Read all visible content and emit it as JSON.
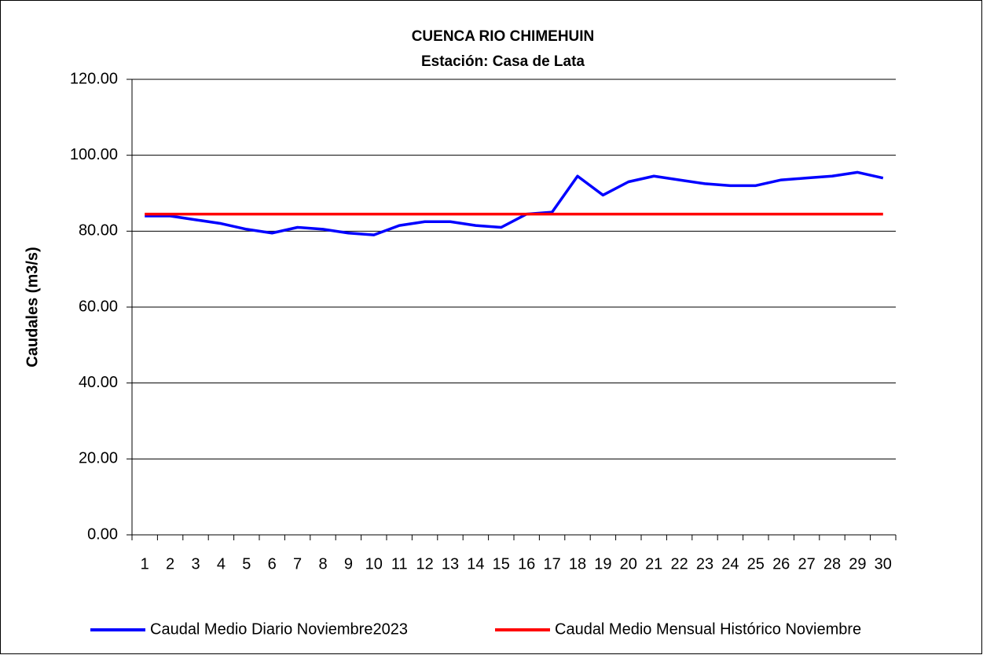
{
  "chart_data": {
    "type": "line",
    "title": "CUENCA RIO CHIMEHUIN",
    "subtitle": "Estación: Casa de Lata",
    "y_label": "Caudales (m3/s)",
    "categories": [
      "1",
      "2",
      "3",
      "4",
      "5",
      "6",
      "7",
      "8",
      "9",
      "10",
      "11",
      "12",
      "13",
      "14",
      "15",
      "16",
      "17",
      "18",
      "19",
      "20",
      "21",
      "22",
      "23",
      "24",
      "25",
      "26",
      "27",
      "28",
      "29",
      "30"
    ],
    "series": [
      {
        "name": "Caudal Medio Diario Noviembre2023",
        "color": "#0000ff",
        "values": [
          84,
          84,
          83,
          82,
          80.5,
          79.5,
          81,
          80.5,
          79.5,
          79,
          81.5,
          82.5,
          82.5,
          81.5,
          81,
          84.5,
          85,
          94.5,
          89.5,
          93,
          94.5,
          93.5,
          92.5,
          92,
          92,
          93.5,
          94,
          94.5,
          95.5,
          94
        ]
      },
      {
        "name": "Caudal Medio Mensual Histórico Noviembre",
        "color": "#ff0000",
        "values": [
          84.5,
          84.5,
          84.5,
          84.5,
          84.5,
          84.5,
          84.5,
          84.5,
          84.5,
          84.5,
          84.5,
          84.5,
          84.5,
          84.5,
          84.5,
          84.5,
          84.5,
          84.5,
          84.5,
          84.5,
          84.5,
          84.5,
          84.5,
          84.5,
          84.5,
          84.5,
          84.5,
          84.5,
          84.5,
          84.5
        ]
      }
    ],
    "ylim": [
      0,
      120
    ],
    "yticks": [
      {
        "value": 0,
        "label": "0.00"
      },
      {
        "value": 20,
        "label": "20.00"
      },
      {
        "value": 40,
        "label": "40.00"
      },
      {
        "value": 60,
        "label": "60.00"
      },
      {
        "value": 80,
        "label": "80.00"
      },
      {
        "value": 100,
        "label": "100.00"
      },
      {
        "value": 120,
        "label": "120.00"
      }
    ],
    "grid": true,
    "legend": "bottom"
  }
}
